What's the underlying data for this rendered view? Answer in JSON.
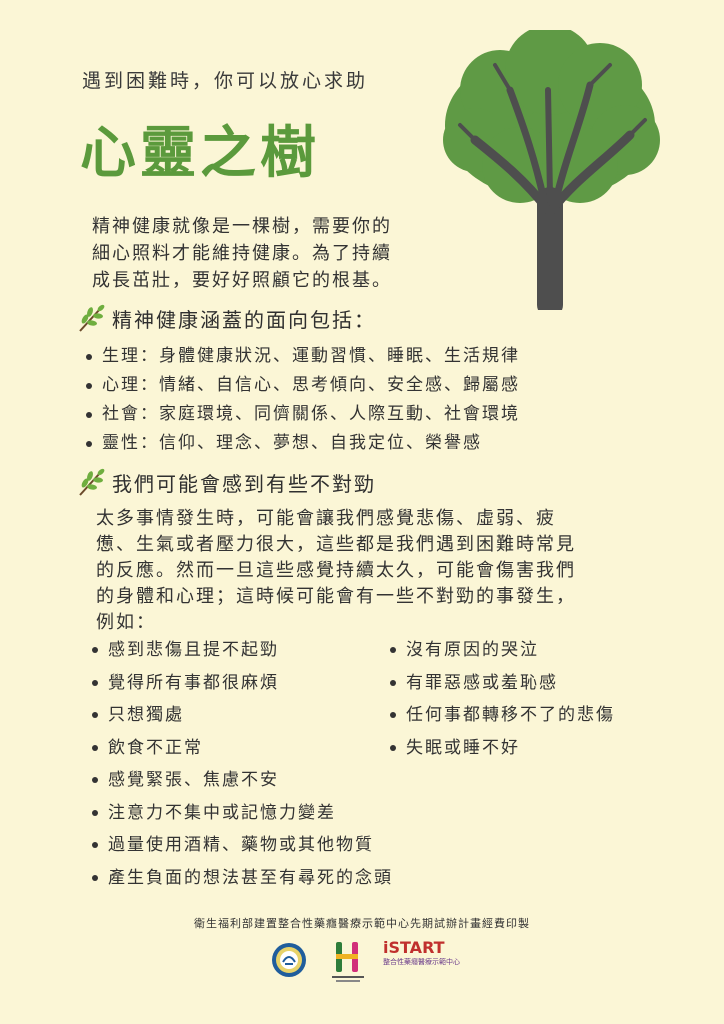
{
  "header": {
    "subtitle": "遇到困難時，你可以放心求助",
    "title": "心靈之樹"
  },
  "intro": {
    "lines": [
      "精神健康就像是一棵樹，需要你的",
      "細心照料才能維持健康。為了持續",
      "成長茁壯，要好好照顧它的根基。"
    ]
  },
  "section1": {
    "heading": "精神健康涵蓋的面向包括：",
    "items": [
      "生理：身體健康狀況、運動習慣、睡眠、生活規律",
      "心理：情緒、自信心、思考傾向、安全感、歸屬感",
      "社會：家庭環境、同儕關係、人際互動、社會環境",
      "靈性：信仰、理念、夢想、自我定位、榮譽感"
    ]
  },
  "section2": {
    "heading": "我們可能會感到有些不對勁",
    "paragraph": [
      "太多事情發生時，可能會讓我們感覺悲傷、虛弱、疲",
      "憊、生氣或者壓力很大，這些都是我們遇到困難時常見",
      "的反應。然而一旦這些感覺持續太久，可能會傷害我們",
      "的身體和心理；這時候可能會有一些不對勁的事發生，",
      "例如："
    ],
    "left_items": [
      "感到悲傷且提不起勁",
      "覺得所有事都很麻煩",
      "只想獨處",
      "飲食不正常",
      "感覺緊張、焦慮不安",
      "注意力不集中或記憶力變差",
      "過量使用酒精、藥物或其他物質",
      "產生負面的想法甚至有尋死的念頭"
    ],
    "right_items": [
      "沒有原因的哭泣",
      "有罪惡感或羞恥感",
      "任何事都轉移不了的悲傷",
      "失眠或睡不好"
    ]
  },
  "footer": {
    "credit": "衛生福利部建置整合性藥癮醫療示範中心先期試辦計畫經費印製",
    "logo_istart_word": "iSTART",
    "logo_istart_sub": "整合性藥癮醫療示範中心"
  },
  "colors": {
    "background": "#fbf6d6",
    "title_green": "#5b9a3c",
    "canopy_green": "#5f9a45",
    "trunk": "#4e4e4e"
  },
  "icons": [
    "tree-illustration",
    "leaf-branch-icon",
    "moh-logo",
    "h-logo",
    "istart-logo"
  ]
}
